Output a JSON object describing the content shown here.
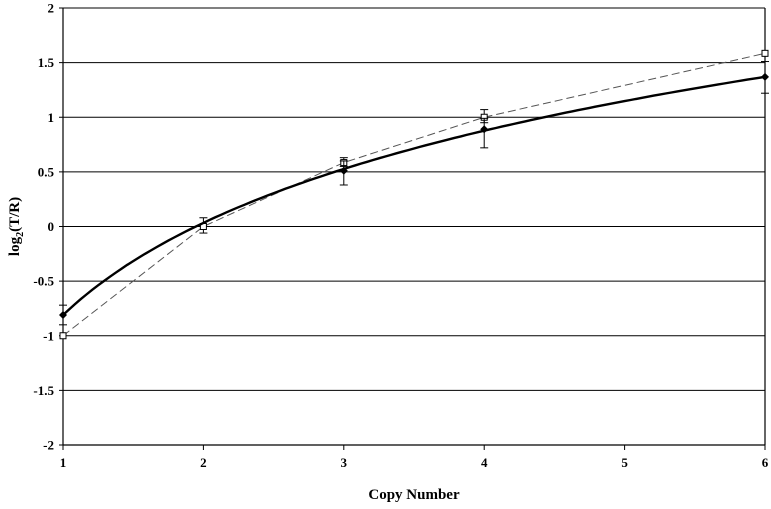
{
  "chart_data": {
    "type": "line",
    "xlabel": "Copy Number",
    "ylabel": {
      "prefix": "log",
      "subscript": "2",
      "suffix": "(T/R)"
    },
    "xlim": [
      1,
      6
    ],
    "ylim": [
      -2,
      2
    ],
    "x_ticks": [
      1,
      2,
      3,
      4,
      5,
      6
    ],
    "y_ticks": [
      2,
      1.5,
      1,
      0.5,
      0,
      -0.5,
      -1,
      -1.5,
      -2
    ],
    "x_tick_labels": [
      "1",
      "2",
      "3",
      "4",
      "5",
      "6"
    ],
    "y_tick_labels": [
      "2",
      "1.5",
      "1",
      "0.5",
      "0",
      "-0.5",
      "-1",
      "-1.5",
      "-2"
    ],
    "grid": "horizontal",
    "legend": "none",
    "series": [
      {
        "marker": "filled-diamond",
        "line_style": "solid-thick",
        "color": "#000000",
        "x": [
          1,
          3,
          4,
          6
        ],
        "y": [
          -0.81,
          0.51,
          0.89,
          1.37
        ],
        "err_low": [
          -0.9,
          0.38,
          0.72,
          1.22
        ],
        "err_high": [
          -0.72,
          0.6,
          0.99,
          1.51
        ],
        "curve": "logarithmic fit"
      },
      {
        "marker": "open-square",
        "line_style": "dashed-thin",
        "color": "#000000",
        "x": [
          1,
          2,
          3,
          4,
          6
        ],
        "y": [
          -1.0,
          0.0,
          0.585,
          1.0,
          1.585
        ],
        "err_low": [
          null,
          -0.06,
          0.55,
          0.95,
          null
        ],
        "err_high": [
          null,
          0.08,
          0.63,
          1.07,
          null
        ]
      }
    ]
  }
}
